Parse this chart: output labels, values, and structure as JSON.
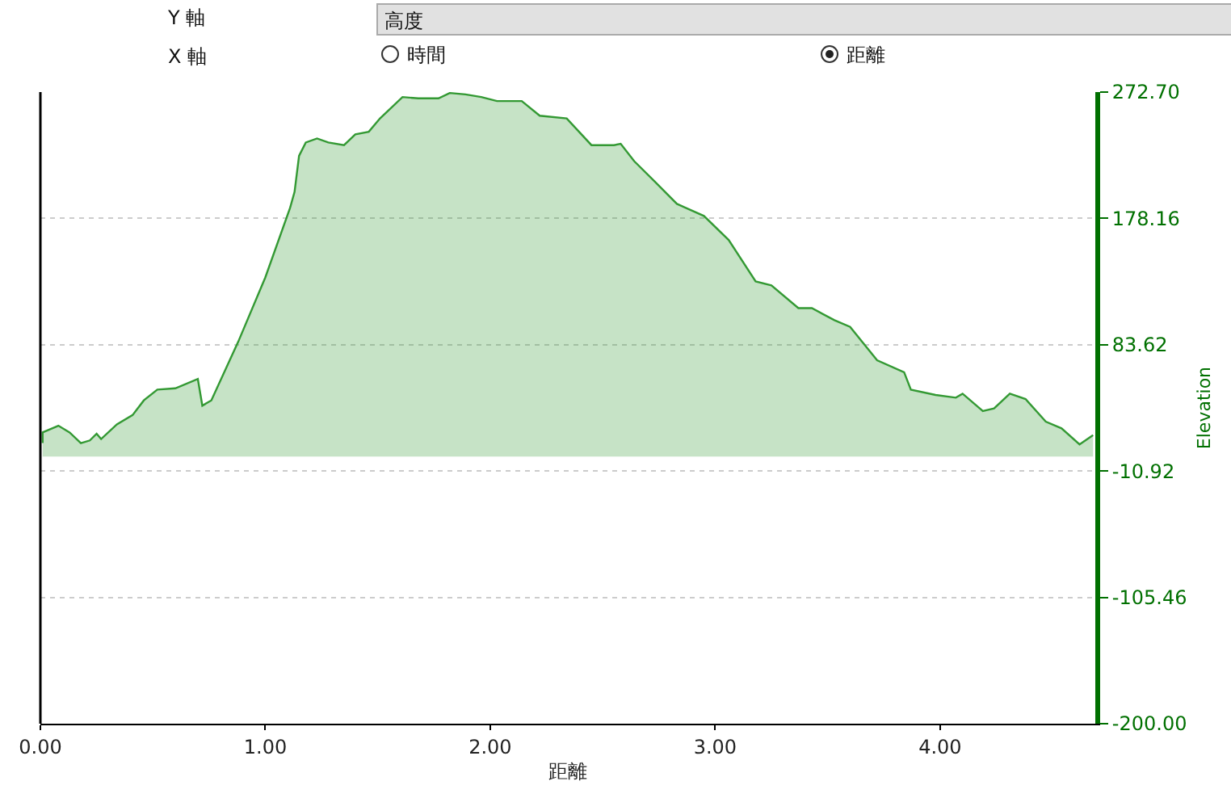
{
  "chart_data": {
    "type": "area",
    "xlabel": "距離",
    "ylabel": "Elevation",
    "annotations": [
      "Y 軸",
      "高度",
      "X 軸",
      "時間",
      "距離"
    ],
    "x": [
      0.01,
      0.01,
      0.08,
      0.13,
      0.18,
      0.22,
      0.25,
      0.27,
      0.34,
      0.41,
      0.46,
      0.52,
      0.6,
      0.7,
      0.72,
      0.76,
      0.88,
      1.0,
      1.11,
      1.13,
      1.15,
      1.18,
      1.23,
      1.28,
      1.35,
      1.4,
      1.46,
      1.51,
      1.61,
      1.68,
      1.77,
      1.82,
      1.89,
      1.96,
      2.03,
      2.14,
      2.22,
      2.34,
      2.45,
      2.55,
      2.58,
      2.64,
      2.73,
      2.83,
      2.95,
      3.06,
      3.18,
      3.25,
      3.37,
      3.43,
      3.53,
      3.6,
      3.72,
      3.84,
      3.87,
      3.98,
      4.07,
      4.1,
      4.19,
      4.24,
      4.31,
      4.38,
      4.47,
      4.54,
      4.62,
      4.68
    ],
    "series": [
      {
        "color": "#339933",
        "values": [
          10,
          18,
          23,
          18,
          10,
          12,
          17,
          13,
          24,
          31,
          42,
          50,
          51,
          58,
          38,
          42,
          86,
          134,
          186,
          198,
          225,
          235,
          238,
          235,
          233,
          241,
          243,
          253,
          269,
          268,
          268,
          272,
          271,
          269,
          266,
          266,
          255,
          253,
          233,
          233,
          234,
          221,
          206,
          189,
          180,
          162,
          131,
          128,
          111,
          111,
          102,
          97,
          72,
          63,
          50,
          46,
          44,
          47,
          34,
          36,
          47,
          43,
          26,
          21,
          9,
          16
        ]
      }
    ],
    "xlim": [
      0,
      4.69
    ],
    "xticks": [
      {
        "value": 0,
        "label": "0.00"
      },
      {
        "value": 1,
        "label": "1.00"
      },
      {
        "value": 2,
        "label": "2.00"
      },
      {
        "value": 3,
        "label": "3.00"
      },
      {
        "value": 4,
        "label": "4.00"
      }
    ],
    "ylim": [
      -200,
      272.7
    ],
    "yticks": [
      {
        "value": -200,
        "label": "-200.00"
      },
      {
        "value": -105.46,
        "label": "-105.46"
      },
      {
        "value": -10.92,
        "label": "-10.92"
      },
      {
        "value": 83.62,
        "label": "83.62"
      },
      {
        "value": 178.16,
        "label": "178.16"
      },
      {
        "value": 272.7,
        "label": "272.70"
      }
    ],
    "grid": "y"
  }
}
